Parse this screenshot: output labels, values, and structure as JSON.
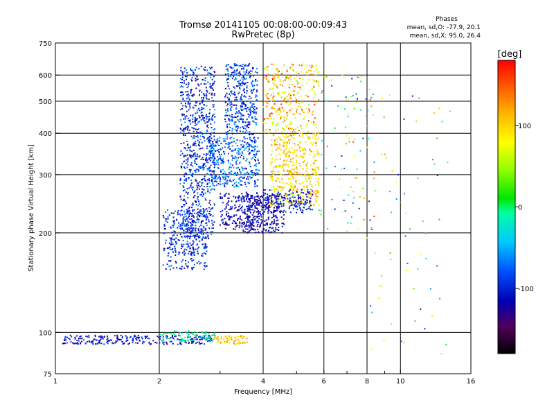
{
  "header": {
    "title": "Tromsø 20141105 00:08:00-00:09:43",
    "subtitle": "RwPretec (8p)"
  },
  "phase_stats": {
    "heading": "Phases",
    "line_o": "mean, sd,O: -77.9, 20.1",
    "line_x": "mean, sd,X:  95.0, 26.4"
  },
  "colorbar": {
    "unit_label": "[deg]",
    "ticks": [
      "100",
      "0",
      "-100"
    ],
    "tick_values": [
      100,
      0,
      -100
    ],
    "range": [
      -180,
      180
    ]
  },
  "chart_data": {
    "type": "scatter",
    "xlabel": "Frequency [MHz]",
    "ylabel": "Stationary phase Virtual Height [km]",
    "x_scale": "log",
    "y_scale": "log",
    "xlim": [
      1,
      16
    ],
    "ylim": [
      75,
      750
    ],
    "x_ticks": [
      1,
      2,
      4,
      6,
      8,
      10,
      16
    ],
    "x_tick_labels": [
      "1",
      "2",
      "4",
      "6",
      "8",
      "10",
      "16"
    ],
    "x_minor": [
      3,
      5,
      7,
      9
    ],
    "y_ticks": [
      75,
      100,
      200,
      300,
      400,
      500,
      600,
      750
    ],
    "y_tick_labels": [
      "75",
      "100",
      "200",
      "300",
      "400",
      "500",
      "600",
      "750"
    ],
    "grid": true,
    "color_encoding": "phase in degrees (-180 to 180)",
    "clusters": [
      {
        "f": [
          1.05,
          2.85
        ],
        "h": [
          92,
          98
        ],
        "n": 260,
        "ph": [
          -140,
          -80
        ]
      },
      {
        "f": [
          2.0,
          2.9
        ],
        "h": [
          94,
          101
        ],
        "n": 90,
        "ph": [
          -40,
          10
        ]
      },
      {
        "f": [
          2.85,
          3.6
        ],
        "h": [
          92,
          98
        ],
        "n": 70,
        "ph": [
          60,
          140
        ]
      },
      {
        "f": [
          2.05,
          2.75
        ],
        "h": [
          155,
          235
        ],
        "n": 320,
        "ph": [
          -125,
          -65
        ]
      },
      {
        "f": [
          2.3,
          2.9
        ],
        "h": [
          190,
          640
        ],
        "n": 800,
        "ph": [
          -135,
          -55
        ]
      },
      {
        "f": [
          2.75,
          3.9
        ],
        "h": [
          275,
          390
        ],
        "n": 420,
        "ph": [
          -120,
          -40
        ]
      },
      {
        "f": [
          3.1,
          3.85
        ],
        "h": [
          395,
          650
        ],
        "n": 380,
        "ph": [
          -125,
          -50
        ]
      },
      {
        "f": [
          3.0,
          3.9
        ],
        "h": [
          205,
          265
        ],
        "n": 200,
        "ph": [
          -135,
          -90
        ]
      },
      {
        "f": [
          3.5,
          4.6
        ],
        "h": [
          200,
          260
        ],
        "n": 280,
        "ph": [
          -140,
          -95
        ]
      },
      {
        "f": [
          4.0,
          5.8
        ],
        "h": [
          400,
          650
        ],
        "n": 320,
        "ph": [
          40,
          170
        ]
      },
      {
        "f": [
          4.2,
          5.8
        ],
        "h": [
          240,
          400
        ],
        "n": 480,
        "ph": [
          60,
          140
        ]
      },
      {
        "f": [
          4.0,
          5.6
        ],
        "h": [
          230,
          270
        ],
        "n": 160,
        "ph": [
          -130,
          -80
        ]
      },
      {
        "f": [
          5.8,
          8.5
        ],
        "h": [
          200,
          600
        ],
        "n": 90,
        "ph": [
          -120,
          160
        ]
      },
      {
        "f": [
          8.0,
          14.0
        ],
        "h": [
          85,
          550
        ],
        "n": 70,
        "ph": [
          -120,
          160
        ]
      }
    ]
  }
}
